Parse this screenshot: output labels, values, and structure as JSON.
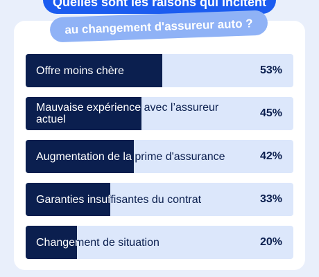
{
  "chart_data": {
    "type": "bar",
    "orientation": "horizontal",
    "title": "Quelles sont les raisons qui incitent",
    "subtitle": "au changement d'assureur auto ?",
    "categories": [
      "Offre moins chère",
      "Mauvaise expérience avec l’assureur actuel",
      "Augmentation de la prime d'assurance",
      "Garanties insuffisantes du contrat",
      "Changement de situation"
    ],
    "values": [
      53,
      45,
      42,
      33,
      20
    ],
    "value_labels": [
      "53%",
      "45%",
      "42%",
      "33%",
      "20%"
    ],
    "xlim": [
      0,
      104
    ],
    "color": "#0b1f4f",
    "track_color": "#dce7fb"
  }
}
